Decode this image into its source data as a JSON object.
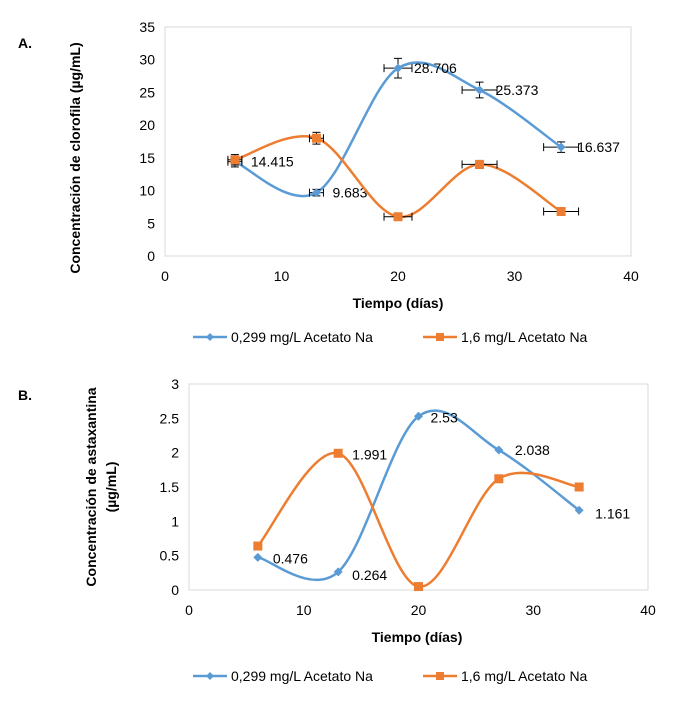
{
  "chart_data": [
    {
      "type": "scatter",
      "panel_label": "A.",
      "xlabel": "Tiempo (días)",
      "ylabel": "Concentración de clorofila (µg/mL)",
      "xlim": [
        0,
        40
      ],
      "ylim": [
        0,
        35
      ],
      "xticks": [
        0,
        10,
        20,
        30,
        40
      ],
      "yticks": [
        0,
        5,
        10,
        15,
        20,
        25,
        30,
        35
      ],
      "grid": false,
      "legend_position": "bottom",
      "series": [
        {
          "name": "0,299 mg/L Acetato Na",
          "color": "#5b9bd5",
          "marker": "diamond",
          "x": [
            6,
            13,
            20,
            27,
            34
          ],
          "y": [
            14.415,
            9.683,
            28.706,
            25.373,
            16.637
          ],
          "xerr": [
            0.6,
            0.6,
            1.2,
            1.5,
            1.5
          ],
          "yerr": [
            0.8,
            0.5,
            1.5,
            1.2,
            0.8
          ],
          "labels": [
            "14.415",
            "9.683",
            "28.706",
            "25.373",
            "16.637"
          ]
        },
        {
          "name": "1,6 mg/L Acetato Na",
          "color": "#ed7d31",
          "marker": "square",
          "x": [
            6,
            13,
            20,
            27,
            34
          ],
          "y": [
            14.7,
            18.0,
            6.0,
            14.0,
            6.8
          ],
          "xerr": [
            0.6,
            0.6,
            1.2,
            1.5,
            1.5
          ],
          "yerr": [
            0.8,
            0.9,
            0.5,
            0.6,
            0.4
          ],
          "labels": []
        }
      ]
    },
    {
      "type": "scatter",
      "panel_label": "B.",
      "xlabel": "Tiempo (días)",
      "ylabel_line1": "Concentración de astaxantina",
      "ylabel_line2": "(µg/mL)",
      "xlim": [
        0,
        40
      ],
      "ylim": [
        0,
        3
      ],
      "xticks": [
        0,
        10,
        20,
        30,
        40
      ],
      "yticks": [
        0,
        0.5,
        1,
        1.5,
        2,
        2.5,
        3
      ],
      "grid": false,
      "legend_position": "bottom",
      "series": [
        {
          "name": "0,299 mg/L Acetato Na",
          "color": "#5b9bd5",
          "marker": "diamond",
          "x": [
            6,
            13,
            20,
            27,
            34
          ],
          "y": [
            0.476,
            0.264,
            2.53,
            2.038,
            1.161
          ],
          "labels": [
            "0.476",
            "0.264",
            "2.53",
            "2.038",
            "1.161"
          ]
        },
        {
          "name": "1,6 mg/L Acetato Na",
          "color": "#ed7d31",
          "marker": "square",
          "x": [
            6,
            13,
            20,
            27,
            34
          ],
          "y": [
            0.64,
            1.991,
            0.05,
            1.62,
            1.5
          ],
          "labels": [
            "",
            "1.991",
            "",
            "",
            ""
          ]
        }
      ]
    }
  ]
}
